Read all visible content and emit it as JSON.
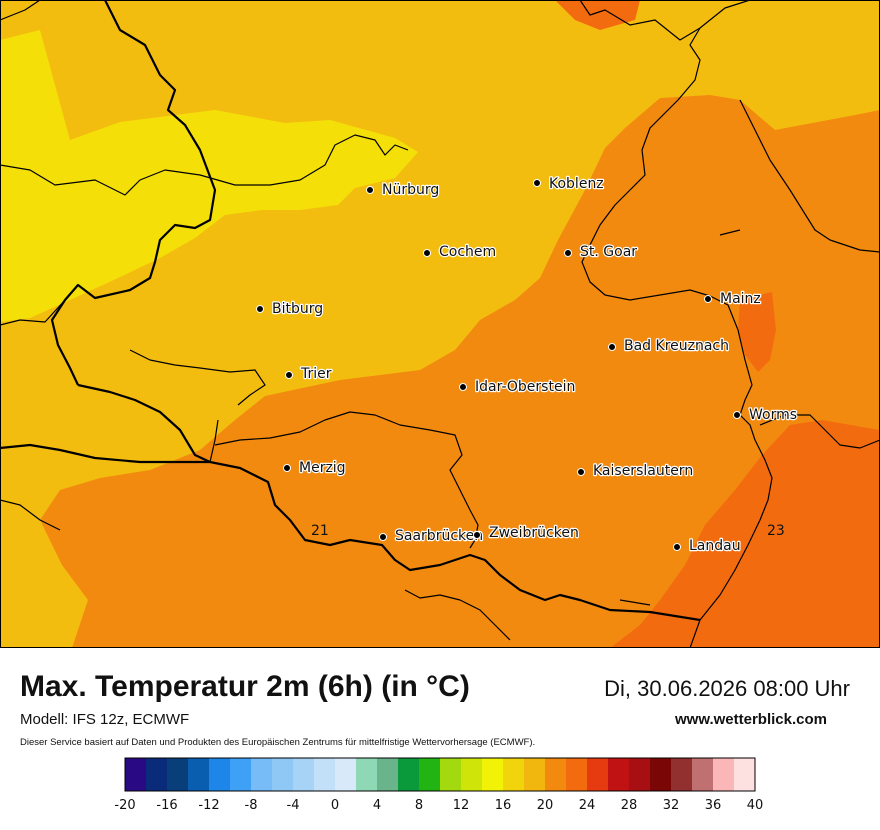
{
  "map": {
    "cities": [
      {
        "name": "Nürburg"
      },
      {
        "name": "Koblenz"
      },
      {
        "name": "Cochem"
      },
      {
        "name": "St. Goar"
      },
      {
        "name": "Mainz"
      },
      {
        "name": "Bitburg"
      },
      {
        "name": "Bad Kreuznach"
      },
      {
        "name": "Trier"
      },
      {
        "name": "Idar-Oberstein"
      },
      {
        "name": "Worms"
      },
      {
        "name": "Merzig"
      },
      {
        "name": "Kaiserslautern"
      },
      {
        "name": "Saarbrücken"
      },
      {
        "name": "Zweibrücken"
      },
      {
        "name": "Landau"
      }
    ],
    "isolines": [
      {
        "label": "21"
      },
      {
        "label": "23"
      }
    ],
    "colors": {
      "band_16_18": "#f4df09",
      "band_18_20": "#f3bd0f",
      "band_20_22": "#f28a10",
      "band_22_24": "#f26c0f"
    }
  },
  "info": {
    "title": "Max. Temperatur 2m (6h) (in °C)",
    "datetime": "Di, 30.06.2026 08:00 Uhr",
    "model": "Modell: IFS 12z, ECMWF",
    "website": "www.wetterblick.com",
    "disclaimer": "Dieser Service basiert auf Daten und Produkten des Europäischen Zentrums für mittelfristige Wettervorhersage (ECMWF)."
  },
  "legend": {
    "colors": [
      "#2a0a84",
      "#0a2a7a",
      "#083f7a",
      "#0a5eaf",
      "#1d86e8",
      "#3fa1f5",
      "#77bbf7",
      "#8fc8f5",
      "#a6d3f6",
      "#c2e0f8",
      "#d8eafa",
      "#8ed8b5",
      "#6ab48b",
      "#0a9a3c",
      "#22b412",
      "#a3d90f",
      "#cfe409",
      "#f2f207",
      "#f2d40d",
      "#f2b70f",
      "#f28a10",
      "#f26c0f",
      "#e63b10",
      "#c01212",
      "#a80f12",
      "#7a0606",
      "#923030",
      "#c07070",
      "#fbb7b7",
      "#fde0e0"
    ],
    "ticks": [
      "-20",
      "-16",
      "-12",
      "-8",
      "-4",
      "0",
      "4",
      "8",
      "12",
      "16",
      "20",
      "24",
      "28",
      "32",
      "36",
      "40"
    ]
  }
}
